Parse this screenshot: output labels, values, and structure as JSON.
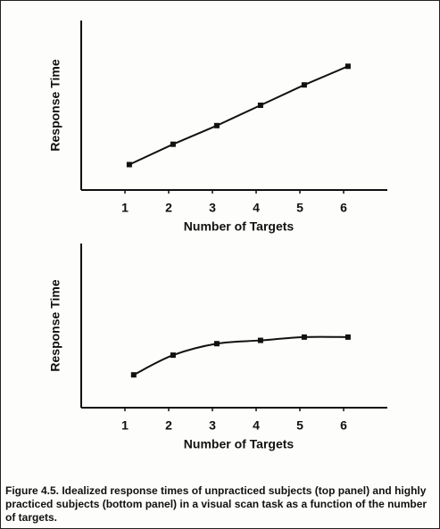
{
  "chart_data": [
    {
      "type": "line",
      "x_label": "Number of Targets",
      "y_label": "Response Time",
      "x": [
        1.1,
        2.1,
        3.1,
        4.1,
        5.1,
        6.1
      ],
      "values": [
        15,
        27,
        38,
        50,
        62,
        73
      ],
      "xlim": [
        0,
        7
      ],
      "xticks": [
        1,
        2,
        3,
        4,
        5,
        6
      ],
      "ylim": [
        0,
        100
      ],
      "color": "#111111",
      "smooth": false
    },
    {
      "type": "line",
      "x_label": "Number of Targets",
      "y_label": "Response Time",
      "x": [
        1.2,
        2.1,
        3.1,
        4.1,
        5.1,
        6.1
      ],
      "values": [
        20,
        32,
        39,
        41,
        43,
        43
      ],
      "xlim": [
        0,
        7
      ],
      "xticks": [
        1,
        2,
        3,
        4,
        5,
        6
      ],
      "ylim": [
        0,
        100
      ],
      "color": "#111111",
      "smooth": true
    }
  ],
  "caption": "Figure 4.5.   Idealized response times of unpracticed subjects (top panel) and highly practiced subjects (bottom panel) in a visual scan task as a function of the number of targets."
}
